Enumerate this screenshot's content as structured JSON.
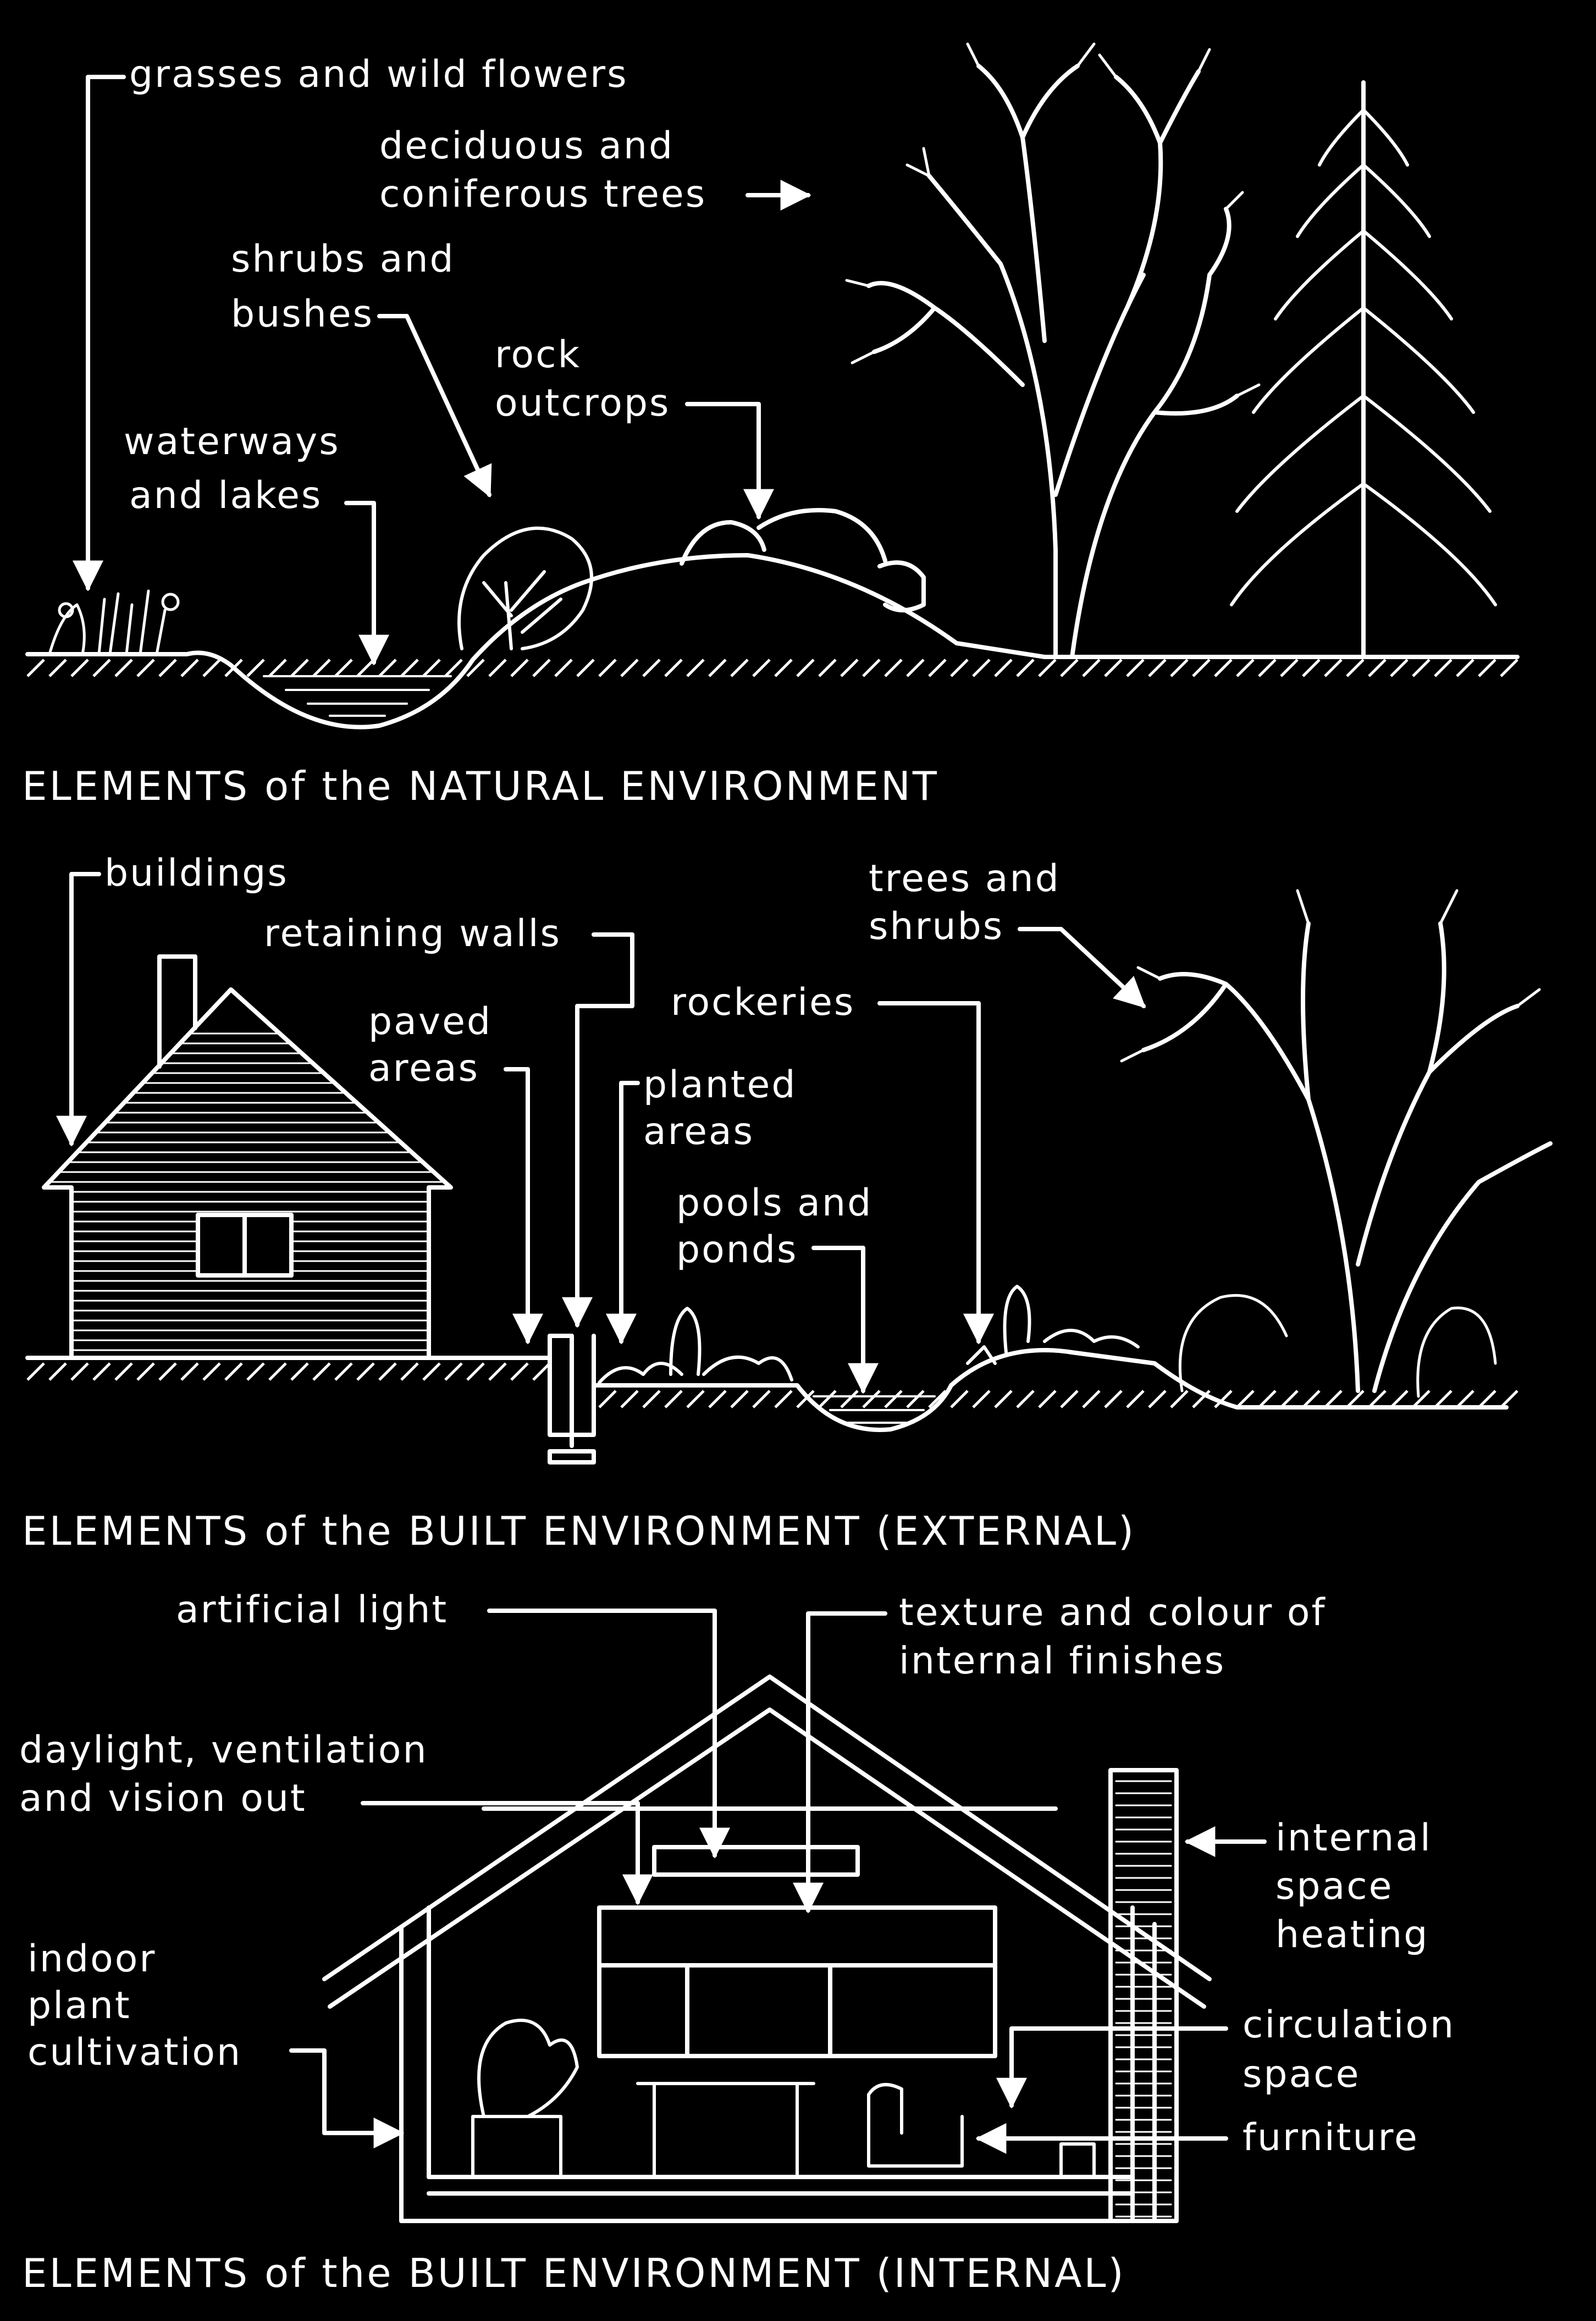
{
  "colors": {
    "background": "#000000",
    "ink": "#ffffff"
  },
  "natural": {
    "caption": "ELEMENTS of the NATURAL ENVIRONMENT",
    "labels": {
      "grasses": "grasses and wild flowers",
      "trees_1": "deciduous and",
      "trees_2": "coniferous trees",
      "shrubs_1": "shrubs and",
      "shrubs_2": "bushes",
      "rock_1": "rock",
      "rock_2": "outcrops",
      "water_1": "waterways",
      "water_2": "and lakes"
    }
  },
  "built_external": {
    "caption": "ELEMENTS of the BUILT ENVIRONMENT (EXTERNAL)",
    "labels": {
      "buildings": "buildings",
      "retaining": "retaining walls",
      "paved_1": "paved",
      "paved_2": "areas",
      "rockeries": "rockeries",
      "planted_1": "planted",
      "planted_2": "areas",
      "pools_1": "pools and",
      "pools_2": "ponds",
      "trees_1": "trees and",
      "trees_2": "shrubs"
    }
  },
  "built_internal": {
    "caption": "ELEMENTS of the BUILT ENVIRONMENT (INTERNAL)",
    "labels": {
      "light": "artificial light",
      "texture_1": "texture and colour of",
      "texture_2": "internal finishes",
      "daylight_1": "daylight, ventilation",
      "daylight_2": "and vision out",
      "heating_1": "internal",
      "heating_2": "space",
      "heating_3": "heating",
      "plant_1": "indoor",
      "plant_2": "plant",
      "plant_3": "cultivation",
      "circ_1": "circulation",
      "circ_2": "space",
      "furniture": "furniture"
    }
  }
}
